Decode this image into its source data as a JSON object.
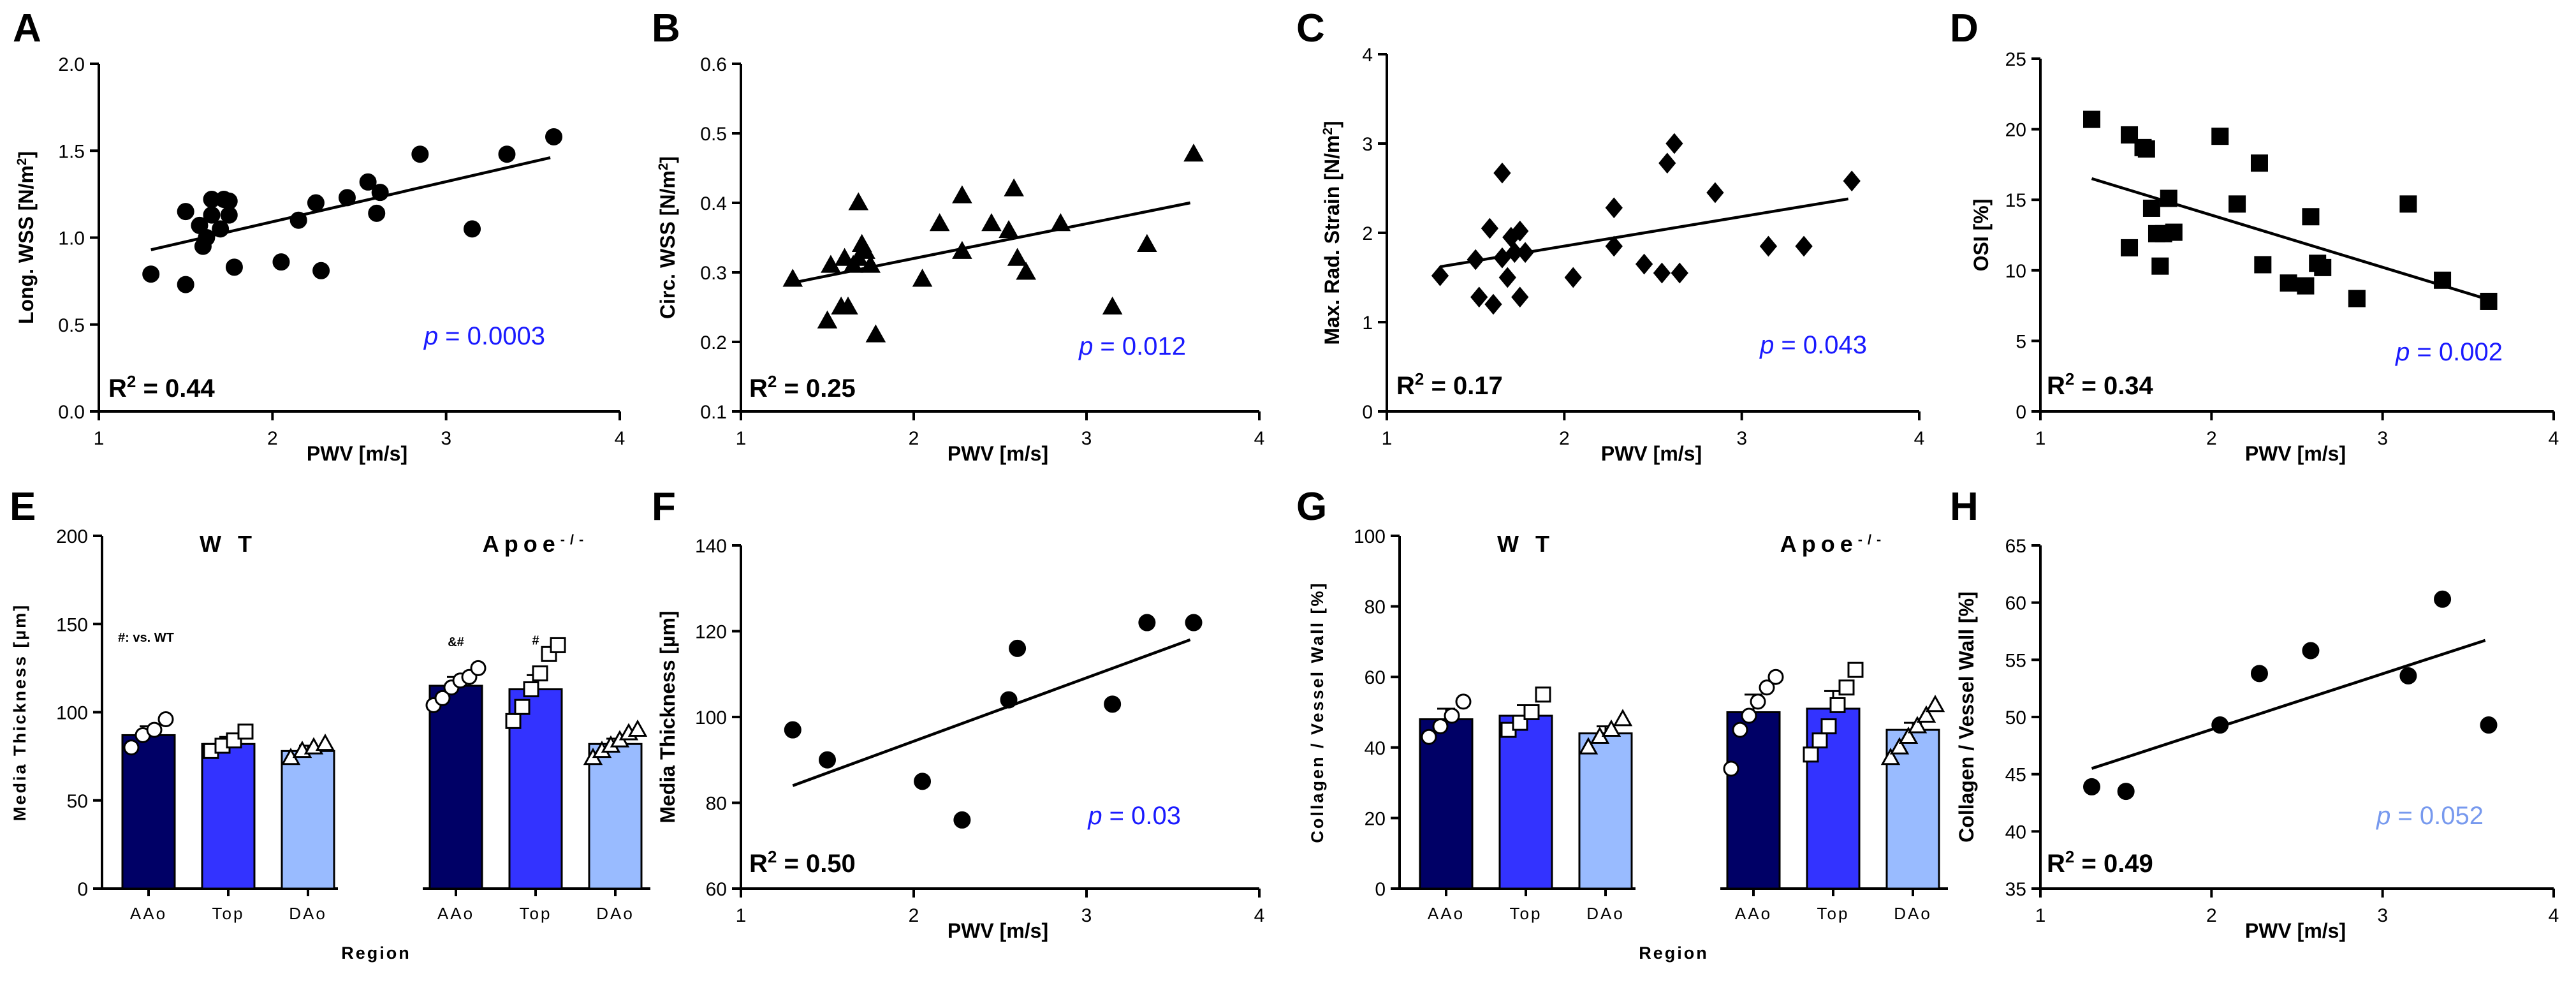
{
  "chart_data": [
    {
      "id": "A",
      "type": "scatter",
      "panel_label": "A",
      "xlabel": "PWV [m/s]",
      "ylabel": "Long. WSS [N/m²]",
      "xlim": [
        1,
        4
      ],
      "ylim": [
        0,
        2.0
      ],
      "xticks": [
        1,
        2,
        3,
        4
      ],
      "xtick_labels": [
        "1",
        "2",
        "3",
        "4"
      ],
      "yticks": [
        0,
        0.5,
        1.0,
        1.5,
        2.0
      ],
      "ytick_labels": [
        "0.0",
        "0.5",
        "1.0",
        "1.5",
        "2.0"
      ],
      "marker": "circle",
      "r2": "R² = 0.44",
      "p": "p = 0.0003",
      "p_color": "#1a1aff",
      "fit": [
        [
          1.3,
          0.93
        ],
        [
          3.6,
          1.46
        ]
      ],
      "points": [
        [
          1.3,
          0.79
        ],
        [
          1.5,
          0.73
        ],
        [
          1.5,
          1.15
        ],
        [
          1.58,
          1.07
        ],
        [
          1.6,
          0.95
        ],
        [
          1.62,
          1.0
        ],
        [
          1.65,
          1.13
        ],
        [
          1.65,
          1.22
        ],
        [
          1.7,
          1.05
        ],
        [
          1.72,
          1.22
        ],
        [
          1.75,
          1.21
        ],
        [
          1.75,
          1.13
        ],
        [
          1.78,
          0.83
        ],
        [
          2.05,
          0.86
        ],
        [
          2.15,
          1.1
        ],
        [
          2.25,
          1.2
        ],
        [
          2.28,
          0.81
        ],
        [
          2.43,
          1.23
        ],
        [
          2.55,
          1.32
        ],
        [
          2.6,
          1.14
        ],
        [
          2.62,
          1.26
        ],
        [
          2.85,
          1.48
        ],
        [
          3.15,
          1.05
        ],
        [
          3.35,
          1.48
        ],
        [
          3.62,
          1.58
        ]
      ]
    },
    {
      "id": "B",
      "type": "scatter",
      "panel_label": "B",
      "xlabel": "PWV [m/s]",
      "ylabel": "Circ. WSS [N/m²]",
      "xlim": [
        1,
        4
      ],
      "ylim": [
        0.1,
        0.6
      ],
      "xticks": [
        1,
        2,
        3,
        4
      ],
      "xtick_labels": [
        "1",
        "2",
        "3",
        "4"
      ],
      "yticks": [
        0.1,
        0.2,
        0.3,
        0.4,
        0.5,
        0.6
      ],
      "ytick_labels": [
        "0.1",
        "0.2",
        "0.3",
        "0.4",
        "0.5",
        "0.6"
      ],
      "marker": "triangle",
      "r2": "R² = 0.25",
      "p": "p = 0.012",
      "p_color": "#1a1aff",
      "fit": [
        [
          1.3,
          0.285
        ],
        [
          3.6,
          0.4
        ]
      ],
      "points": [
        [
          1.3,
          0.29
        ],
        [
          1.5,
          0.23
        ],
        [
          1.52,
          0.31
        ],
        [
          1.58,
          0.25
        ],
        [
          1.6,
          0.32
        ],
        [
          1.62,
          0.25
        ],
        [
          1.65,
          0.31
        ],
        [
          1.68,
          0.32
        ],
        [
          1.68,
          0.4
        ],
        [
          1.7,
          0.34
        ],
        [
          1.72,
          0.33
        ],
        [
          1.75,
          0.31
        ],
        [
          1.78,
          0.21
        ],
        [
          2.05,
          0.29
        ],
        [
          2.15,
          0.37
        ],
        [
          2.28,
          0.41
        ],
        [
          2.28,
          0.33
        ],
        [
          2.45,
          0.37
        ],
        [
          2.55,
          0.36
        ],
        [
          2.58,
          0.42
        ],
        [
          2.6,
          0.32
        ],
        [
          2.65,
          0.3
        ],
        [
          2.85,
          0.37
        ],
        [
          3.15,
          0.25
        ],
        [
          3.35,
          0.34
        ],
        [
          3.62,
          0.47
        ]
      ]
    },
    {
      "id": "C",
      "type": "scatter",
      "panel_label": "C",
      "xlabel": "PWV [m/s]",
      "ylabel": "Max. Rad. Strain [N/m²]",
      "xlim": [
        1,
        4
      ],
      "ylim": [
        0,
        4
      ],
      "xticks": [
        1,
        2,
        3,
        4
      ],
      "xtick_labels": [
        "1",
        "2",
        "3",
        "4"
      ],
      "yticks": [
        0,
        1,
        2,
        3,
        4
      ],
      "ytick_labels": [
        "0",
        "1",
        "2",
        "3",
        "4"
      ],
      "marker": "diamond",
      "r2": "R² = 0.17",
      "p": "p = 0.043",
      "p_color": "#1a1aff",
      "fit": [
        [
          1.3,
          1.62
        ],
        [
          3.6,
          2.38
        ]
      ],
      "points": [
        [
          1.3,
          1.52
        ],
        [
          1.5,
          1.7
        ],
        [
          1.52,
          1.28
        ],
        [
          1.58,
          2.05
        ],
        [
          1.6,
          1.2
        ],
        [
          1.65,
          1.72
        ],
        [
          1.65,
          2.67
        ],
        [
          1.68,
          1.5
        ],
        [
          1.7,
          1.95
        ],
        [
          1.72,
          1.78
        ],
        [
          1.75,
          2.02
        ],
        [
          1.75,
          1.28
        ],
        [
          1.78,
          1.78
        ],
        [
          2.05,
          1.5
        ],
        [
          2.28,
          2.28
        ],
        [
          2.28,
          1.85
        ],
        [
          2.45,
          1.65
        ],
        [
          2.55,
          1.55
        ],
        [
          2.58,
          2.78
        ],
        [
          2.62,
          3.0
        ],
        [
          2.65,
          1.55
        ],
        [
          2.85,
          2.45
        ],
        [
          3.15,
          1.85
        ],
        [
          3.35,
          1.85
        ],
        [
          3.62,
          2.58
        ]
      ]
    },
    {
      "id": "D",
      "type": "scatter",
      "panel_label": "D",
      "xlabel": "PWV [m/s]",
      "ylabel": "OSI [%]",
      "xlim": [
        1,
        4
      ],
      "ylim": [
        0,
        25
      ],
      "xticks": [
        1,
        2,
        3,
        4
      ],
      "xtick_labels": [
        "1",
        "2",
        "3",
        "4"
      ],
      "yticks": [
        0,
        5,
        10,
        15,
        20,
        25
      ],
      "ytick_labels": [
        "0",
        "5",
        "10",
        "15",
        "20",
        "25"
      ],
      "marker": "square",
      "r2": "R² = 0.34",
      "p": "p = 0.002",
      "p_color": "#1a1aff",
      "fit": [
        [
          1.3,
          16.5
        ],
        [
          3.6,
          8.0
        ]
      ],
      "points": [
        [
          1.3,
          20.7
        ],
        [
          1.52,
          19.6
        ],
        [
          1.52,
          11.6
        ],
        [
          1.6,
          18.7
        ],
        [
          1.62,
          18.6
        ],
        [
          1.65,
          14.4
        ],
        [
          1.68,
          12.6
        ],
        [
          1.7,
          10.3
        ],
        [
          1.72,
          12.6
        ],
        [
          1.75,
          15.1
        ],
        [
          1.78,
          12.7
        ],
        [
          2.05,
          19.5
        ],
        [
          2.15,
          14.7
        ],
        [
          2.28,
          17.6
        ],
        [
          2.3,
          10.4
        ],
        [
          2.45,
          9.1
        ],
        [
          2.55,
          8.9
        ],
        [
          2.58,
          13.8
        ],
        [
          2.62,
          10.5
        ],
        [
          2.65,
          10.2
        ],
        [
          2.85,
          8.0
        ],
        [
          3.15,
          14.7
        ],
        [
          3.35,
          9.3
        ],
        [
          3.62,
          7.8
        ]
      ]
    },
    {
      "id": "E",
      "type": "bar",
      "panel_label": "E",
      "ylabel": "Media Thickness [µm]",
      "xlabel": "Region",
      "ylim": [
        0,
        200
      ],
      "yticks": [
        0,
        50,
        100,
        150,
        200
      ],
      "ytick_labels": [
        "0",
        "50",
        "100",
        "150",
        "200"
      ],
      "groups": [
        "W T",
        "Apoe-/-"
      ],
      "group_super": "-/-",
      "group_base": "Apoe",
      "categories": [
        "AAo",
        "Top",
        "DAo"
      ],
      "colors": [
        "#000066",
        "#3333ff",
        "#99bbff"
      ],
      "annotation": "#: vs. WT",
      "bar_marks": [
        "",
        "",
        "",
        "&#",
        "#",
        ""
      ],
      "series": [
        {
          "group": "W T",
          "region": "AAo",
          "value": 87,
          "sem": 5,
          "marker": "circle",
          "points": [
            80,
            87,
            90,
            96
          ]
        },
        {
          "group": "W T",
          "region": "Top",
          "value": 82,
          "sem": 4,
          "marker": "square",
          "points": [
            78,
            81,
            84,
            89
          ]
        },
        {
          "group": "W T",
          "region": "DAo",
          "value": 78,
          "sem": 3,
          "marker": "triangle",
          "points": [
            74,
            78,
            80,
            82
          ]
        },
        {
          "group": "Apoe-/-",
          "region": "AAo",
          "value": 115,
          "sem": 5,
          "marker": "circle",
          "points": [
            104,
            108,
            114,
            118,
            120,
            125
          ]
        },
        {
          "group": "Apoe-/-",
          "region": "Top",
          "value": 113,
          "sem": 8,
          "marker": "square",
          "points": [
            95,
            103,
            113,
            122,
            133,
            138
          ]
        },
        {
          "group": "Apoe-/-",
          "region": "DAo",
          "value": 82,
          "sem": 3,
          "marker": "triangle",
          "points": [
            74,
            78,
            81,
            84,
            88,
            90
          ]
        }
      ]
    },
    {
      "id": "F",
      "type": "scatter",
      "panel_label": "F",
      "xlabel": "PWV [m/s]",
      "ylabel": "Media Thickness [µm]",
      "xlim": [
        1,
        4
      ],
      "ylim": [
        60,
        140
      ],
      "xticks": [
        1,
        2,
        3,
        4
      ],
      "xtick_labels": [
        "1",
        "2",
        "3",
        "4"
      ],
      "yticks": [
        60,
        80,
        100,
        120,
        140
      ],
      "ytick_labels": [
        "60",
        "80",
        "100",
        "120",
        "140"
      ],
      "marker": "circle",
      "r2": "R² = 0.50",
      "p": "p = 0.03",
      "p_color": "#1a1aff",
      "fit": [
        [
          1.3,
          84
        ],
        [
          3.6,
          118
        ]
      ],
      "points": [
        [
          1.3,
          97
        ],
        [
          1.5,
          90
        ],
        [
          2.05,
          85
        ],
        [
          2.28,
          76
        ],
        [
          2.55,
          104
        ],
        [
          2.6,
          116
        ],
        [
          3.15,
          103
        ],
        [
          3.35,
          122
        ],
        [
          3.62,
          122
        ]
      ]
    },
    {
      "id": "G",
      "type": "bar",
      "panel_label": "G",
      "ylabel": "Collagen / Vessel Wall [%]",
      "xlabel": "Region",
      "ylim": [
        0,
        100
      ],
      "yticks": [
        0,
        20,
        40,
        60,
        80,
        100
      ],
      "ytick_labels": [
        "0",
        "20",
        "40",
        "60",
        "80",
        "100"
      ],
      "groups": [
        "W T",
        "Apoe-/-"
      ],
      "group_super": "-/-",
      "group_base": "Apoe",
      "categories": [
        "AAo",
        "Top",
        "DAo"
      ],
      "colors": [
        "#000066",
        "#3333ff",
        "#99bbff"
      ],
      "series": [
        {
          "group": "W T",
          "region": "AAo",
          "value": 48,
          "sem": 3,
          "marker": "circle",
          "points": [
            43,
            46,
            49,
            53
          ]
        },
        {
          "group": "W T",
          "region": "Top",
          "value": 49,
          "sem": 3,
          "marker": "square",
          "points": [
            45,
            47,
            50,
            55
          ]
        },
        {
          "group": "W T",
          "region": "DAo",
          "value": 44,
          "sem": 2,
          "marker": "triangle",
          "points": [
            40,
            43,
            45,
            48
          ]
        },
        {
          "group": "Apoe-/-",
          "region": "AAo",
          "value": 50,
          "sem": 5,
          "marker": "circle",
          "points": [
            34,
            45,
            49,
            53,
            57,
            60
          ]
        },
        {
          "group": "Apoe-/-",
          "region": "Top",
          "value": 51,
          "sem": 5,
          "marker": "square",
          "points": [
            38,
            42,
            46,
            52,
            57,
            62
          ]
        },
        {
          "group": "Apoe-/-",
          "region": "DAo",
          "value": 45,
          "sem": 2,
          "marker": "triangle",
          "points": [
            37,
            40,
            43,
            46,
            49,
            52
          ]
        }
      ]
    },
    {
      "id": "H",
      "type": "scatter",
      "panel_label": "H",
      "xlabel": "PWV [m/s]",
      "ylabel": "Collagen / Vessel Wall [%]",
      "xlim": [
        1,
        4
      ],
      "ylim": [
        35,
        65
      ],
      "xticks": [
        1,
        2,
        3,
        4
      ],
      "xtick_labels": [
        "1",
        "2",
        "3",
        "4"
      ],
      "yticks": [
        35,
        40,
        45,
        50,
        55,
        60,
        65
      ],
      "ytick_labels": [
        "35",
        "40",
        "45",
        "50",
        "55",
        "60",
        "65"
      ],
      "marker": "circle",
      "r2": "R² = 0.49",
      "p": "p = 0.052",
      "p_color": "#7799ee",
      "fit": [
        [
          1.3,
          45.5
        ],
        [
          3.6,
          56.7
        ]
      ],
      "points": [
        [
          1.3,
          43.9
        ],
        [
          1.5,
          43.5
        ],
        [
          2.05,
          49.3
        ],
        [
          2.28,
          53.8
        ],
        [
          2.58,
          55.8
        ],
        [
          3.15,
          53.6
        ],
        [
          3.35,
          60.3
        ],
        [
          3.62,
          49.3
        ]
      ]
    }
  ]
}
